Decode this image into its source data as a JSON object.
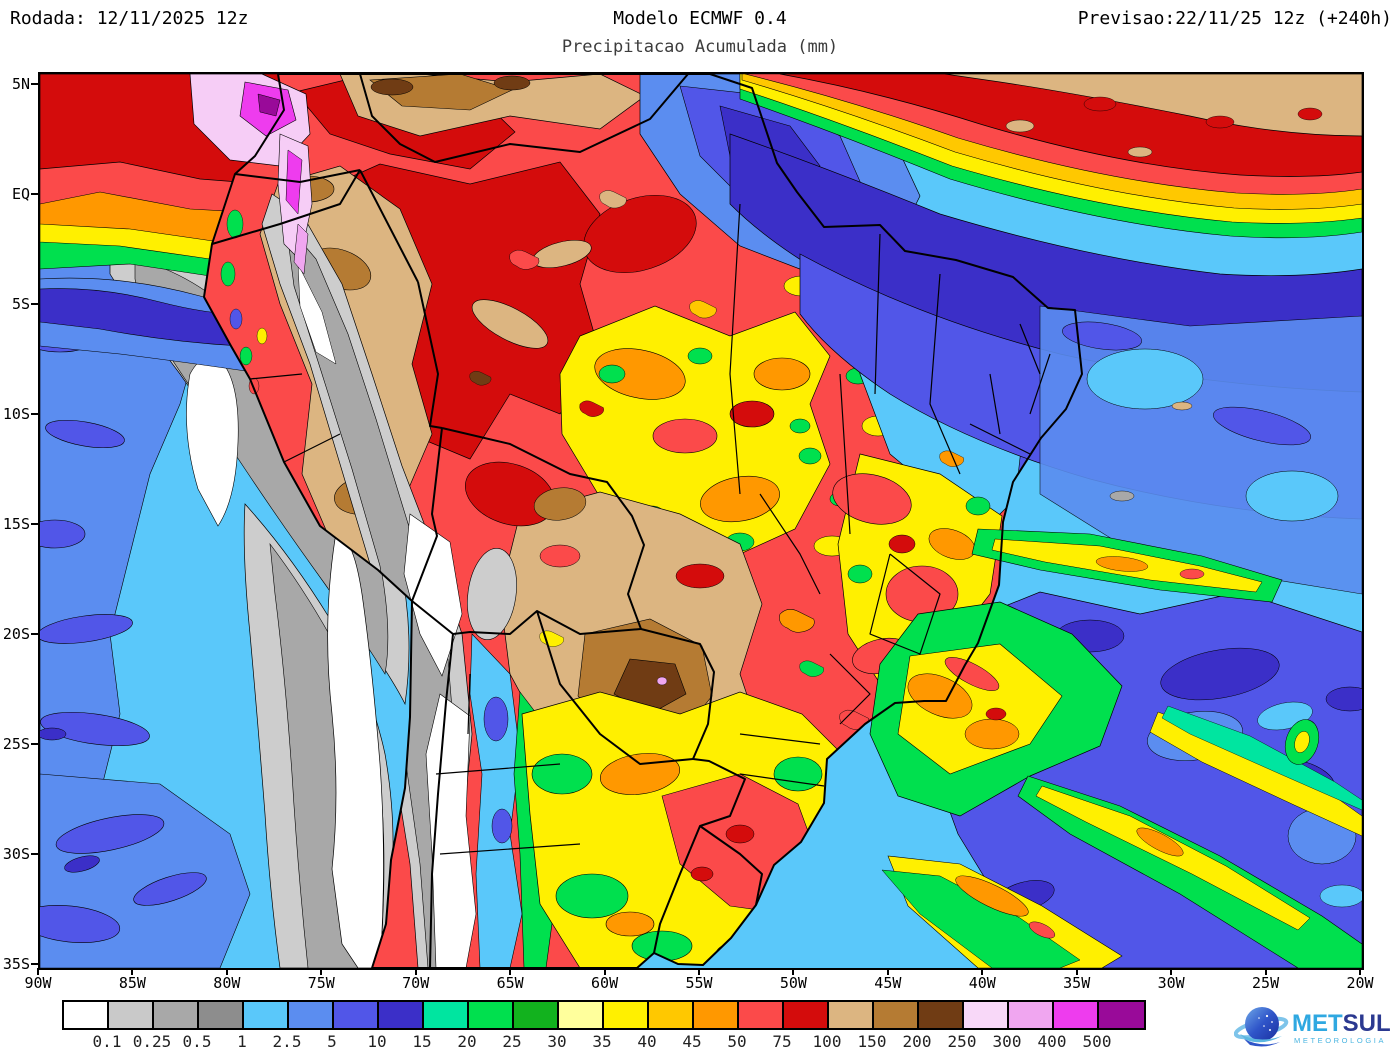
{
  "header": {
    "run_label": "Rodada: 12/11/2025 12z",
    "model_label": "Modelo ECMWF 0.4",
    "forecast_label": "Previsao:22/11/25 12z (+240h)",
    "subtitle": "Precipitacao Acumulada (mm)"
  },
  "map": {
    "y_axis_labels": [
      "5N",
      "EQ",
      "5S",
      "10S",
      "15S",
      "20S",
      "25S",
      "30S",
      "35S"
    ],
    "x_axis_labels": [
      "90W",
      "85W",
      "80W",
      "75W",
      "70W",
      "65W",
      "60W",
      "55W",
      "50W",
      "45W",
      "40W",
      "35W",
      "30W",
      "25W",
      "20W"
    ]
  },
  "chart_data": {
    "type": "heatmap",
    "title": "Precipitacao Acumulada (mm)",
    "model": "ECMWF 0.4",
    "run": "12/11/2025 12z",
    "valid": "22/11/25 12z (+240h)",
    "lon_range_deg_west": [
      90,
      20
    ],
    "lat_range": [
      "5N",
      "35S"
    ],
    "legend_position": "bottom",
    "scale_values": [
      "0.1",
      "0.25",
      "0.5",
      "1",
      "2.5",
      "5",
      "10",
      "15",
      "20",
      "25",
      "30",
      "35",
      "40",
      "45",
      "50",
      "75",
      "100",
      "150",
      "200",
      "250",
      "300",
      "400",
      "500"
    ],
    "scale_colors": [
      "#ffffff",
      "#c9c9c9",
      "#a8a8a8",
      "#8d8d8d",
      "#5ac8fa",
      "#5b8df0",
      "#5156e8",
      "#3b2fc8",
      "#00e5a0",
      "#00e04e",
      "#12b21e",
      "#ffff9c",
      "#fff000",
      "#ffc800",
      "#ff9800",
      "#fb4a4a",
      "#d40c0c",
      "#dcb581",
      "#b57b33",
      "#703c14",
      "#f8d8f8",
      "#f0a6f0",
      "#ee3cee",
      "#990a99"
    ]
  },
  "logo": {
    "brand_part1": "MET",
    "brand_part2": "SUL",
    "subtext": "METEOROLOGIA",
    "accent_light": "#2fa8e1",
    "accent_dark": "#2b3990"
  }
}
